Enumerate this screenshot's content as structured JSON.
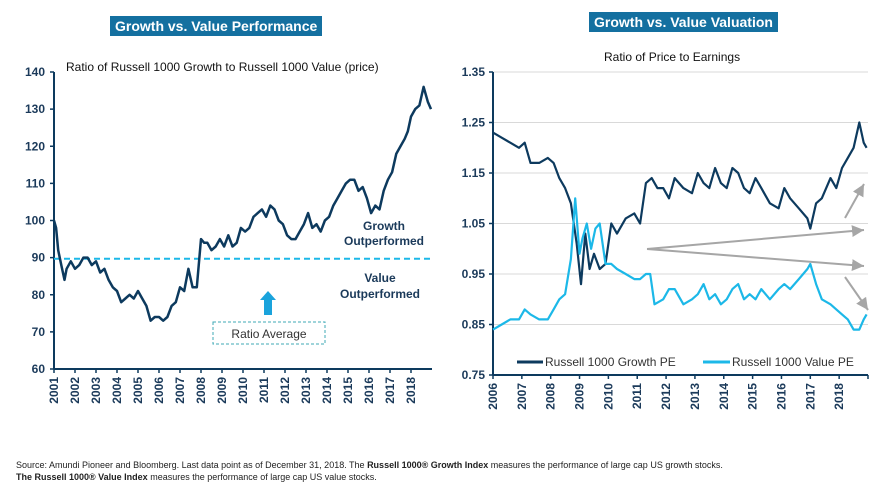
{
  "footnote": {
    "line1_a": "Source: Amundi Pioneer and Bloomberg. Last data point as of December 31, 2018. The ",
    "line1_b": "Russell 1000® Growth Index",
    "line1_c": " measures the performance of large cap US growth stocks.",
    "line2_a": "The Russell 1000® Value Index",
    "line2_b": " measures the performance of large cap US value stocks."
  },
  "colors": {
    "header_bg": "#1470a0",
    "growth": "#0d3a5e",
    "value": "#1cb8e8",
    "arrow": "#a6a6a6"
  },
  "chart_data": [
    {
      "type": "line",
      "header": "Growth vs. Value Performance",
      "title": "Ratio of Russell 1000 Growth to Russell 1000 Value (price)",
      "xlabel": "",
      "ylabel": "",
      "ylim": [
        60,
        140
      ],
      "yticks": [
        "60",
        "70",
        "80",
        "90",
        "100",
        "110",
        "120",
        "130",
        "140"
      ],
      "xticks": [
        "2001",
        "2002",
        "2003",
        "2004",
        "2005",
        "2006",
        "2007",
        "2008",
        "2009",
        "2010",
        "2011",
        "2012",
        "2013",
        "2014",
        "2015",
        "2016",
        "2017",
        "2018"
      ],
      "xlim": [
        2001,
        2019
      ],
      "reference_line": {
        "value": 89.7,
        "label": "Ratio Average"
      },
      "annotations": {
        "above": [
          "Growth",
          "Outperformed"
        ],
        "below": [
          "Value",
          "Outperformed"
        ]
      },
      "series": [
        {
          "name": "Ratio",
          "x": [
            2001.0,
            2001.1,
            2001.2,
            2001.35,
            2001.5,
            2001.6,
            2001.8,
            2002.0,
            2002.2,
            2002.4,
            2002.6,
            2002.8,
            2003.0,
            2003.2,
            2003.4,
            2003.6,
            2003.8,
            2004.0,
            2004.2,
            2004.4,
            2004.6,
            2004.8,
            2005.0,
            2005.2,
            2005.4,
            2005.6,
            2005.8,
            2006.0,
            2006.2,
            2006.4,
            2006.6,
            2006.8,
            2007.0,
            2007.2,
            2007.4,
            2007.6,
            2007.8,
            2008.0,
            2008.15,
            2008.3,
            2008.5,
            2008.7,
            2008.9,
            2009.1,
            2009.3,
            2009.5,
            2009.7,
            2009.9,
            2010.1,
            2010.3,
            2010.5,
            2010.7,
            2010.9,
            2011.1,
            2011.3,
            2011.5,
            2011.7,
            2011.9,
            2012.1,
            2012.3,
            2012.5,
            2012.7,
            2012.9,
            2013.1,
            2013.3,
            2013.5,
            2013.7,
            2013.9,
            2014.1,
            2014.3,
            2014.5,
            2014.7,
            2014.9,
            2015.1,
            2015.3,
            2015.5,
            2015.7,
            2015.9,
            2016.1,
            2016.3,
            2016.5,
            2016.7,
            2016.9,
            2017.1,
            2017.3,
            2017.5,
            2017.7,
            2017.85,
            2018.0,
            2018.2,
            2018.4,
            2018.6,
            2018.8,
            2018.95
          ],
          "values": [
            100,
            98,
            92,
            88,
            84,
            87,
            89,
            87,
            88,
            90,
            90,
            88,
            89,
            86,
            87,
            84,
            82,
            81,
            78,
            79,
            80,
            79,
            81,
            79,
            77,
            73,
            74,
            74,
            73,
            74,
            77,
            78,
            82,
            81,
            87,
            82,
            82,
            95,
            94,
            94,
            92,
            93,
            95,
            93,
            96,
            93,
            94,
            98,
            97,
            98,
            101,
            102,
            103,
            101,
            104,
            103,
            100,
            99,
            96,
            95,
            95,
            97,
            99,
            102,
            98,
            99,
            97,
            100,
            101,
            104,
            106,
            108,
            110,
            111,
            111,
            108,
            109,
            106,
            102,
            104,
            103,
            108,
            111,
            113,
            118,
            120,
            122,
            124,
            128,
            130,
            131,
            136,
            132,
            130
          ]
        }
      ]
    },
    {
      "type": "line",
      "header": "Growth vs. Value Valuation",
      "title": "Ratio of Price to Earnings",
      "xlabel": "",
      "ylabel": "",
      "ylim": [
        0.75,
        1.35
      ],
      "yticks": [
        "0.75",
        "0.85",
        "0.95",
        "1.05",
        "1.15",
        "1.25",
        "1.35"
      ],
      "xticks": [
        "2006",
        "2007",
        "2008",
        "2009",
        "2010",
        "2011",
        "2012",
        "2013",
        "2014",
        "2015",
        "2016",
        "2017",
        "2018"
      ],
      "xlim": [
        2006,
        2019
      ],
      "grid": true,
      "legend": "bottom",
      "series": [
        {
          "name": "Russell 1000 Growth PE",
          "x": [
            2006.0,
            2006.3,
            2006.6,
            2006.9,
            2007.1,
            2007.3,
            2007.6,
            2007.9,
            2008.1,
            2008.3,
            2008.5,
            2008.7,
            2008.9,
            2009.05,
            2009.2,
            2009.35,
            2009.5,
            2009.7,
            2009.9,
            2010.1,
            2010.3,
            2010.6,
            2010.9,
            2011.1,
            2011.3,
            2011.5,
            2011.7,
            2011.9,
            2012.1,
            2012.3,
            2012.6,
            2012.9,
            2013.1,
            2013.3,
            2013.5,
            2013.7,
            2013.9,
            2014.1,
            2014.3,
            2014.5,
            2014.7,
            2014.9,
            2015.1,
            2015.3,
            2015.6,
            2015.9,
            2016.1,
            2016.3,
            2016.6,
            2016.9,
            2017.0,
            2017.2,
            2017.4,
            2017.7,
            2017.9,
            2018.1,
            2018.3,
            2018.5,
            2018.7,
            2018.85,
            2018.95
          ],
          "values": [
            1.23,
            1.22,
            1.21,
            1.2,
            1.21,
            1.17,
            1.17,
            1.18,
            1.17,
            1.14,
            1.12,
            1.09,
            1.01,
            0.93,
            1.03,
            0.96,
            0.99,
            0.96,
            0.97,
            1.05,
            1.03,
            1.06,
            1.07,
            1.05,
            1.13,
            1.14,
            1.12,
            1.12,
            1.1,
            1.14,
            1.12,
            1.11,
            1.15,
            1.13,
            1.12,
            1.16,
            1.13,
            1.12,
            1.16,
            1.15,
            1.12,
            1.11,
            1.14,
            1.12,
            1.09,
            1.08,
            1.12,
            1.1,
            1.08,
            1.06,
            1.04,
            1.09,
            1.1,
            1.14,
            1.12,
            1.16,
            1.18,
            1.2,
            1.25,
            1.21,
            1.2
          ]
        },
        {
          "name": "Russell 1000 Value PE",
          "x": [
            2006.0,
            2006.3,
            2006.6,
            2006.9,
            2007.1,
            2007.3,
            2007.6,
            2007.9,
            2008.1,
            2008.3,
            2008.5,
            2008.7,
            2008.85,
            2009.0,
            2009.1,
            2009.25,
            2009.4,
            2009.55,
            2009.7,
            2009.9,
            2010.1,
            2010.3,
            2010.6,
            2010.9,
            2011.1,
            2011.3,
            2011.45,
            2011.6,
            2011.9,
            2012.1,
            2012.3,
            2012.6,
            2012.9,
            2013.1,
            2013.3,
            2013.5,
            2013.7,
            2013.9,
            2014.1,
            2014.3,
            2014.5,
            2014.7,
            2014.9,
            2015.1,
            2015.3,
            2015.6,
            2015.9,
            2016.1,
            2016.3,
            2016.6,
            2016.9,
            2017.0,
            2017.2,
            2017.4,
            2017.7,
            2017.9,
            2018.1,
            2018.3,
            2018.5,
            2018.7,
            2018.85,
            2018.95
          ],
          "values": [
            0.84,
            0.85,
            0.86,
            0.86,
            0.88,
            0.87,
            0.86,
            0.86,
            0.88,
            0.9,
            0.91,
            0.98,
            1.1,
            0.99,
            1.02,
            1.05,
            1.0,
            1.04,
            1.05,
            0.97,
            0.97,
            0.96,
            0.95,
            0.94,
            0.94,
            0.95,
            0.95,
            0.89,
            0.9,
            0.92,
            0.92,
            0.89,
            0.9,
            0.91,
            0.93,
            0.9,
            0.91,
            0.89,
            0.9,
            0.92,
            0.93,
            0.9,
            0.91,
            0.9,
            0.92,
            0.9,
            0.92,
            0.93,
            0.92,
            0.94,
            0.96,
            0.97,
            0.93,
            0.9,
            0.89,
            0.88,
            0.87,
            0.86,
            0.84,
            0.84,
            0.86,
            0.87
          ]
        }
      ],
      "arrows": [
        "converging growth trend",
        "converging value trend",
        "growth trend up",
        "value trend down"
      ]
    }
  ]
}
